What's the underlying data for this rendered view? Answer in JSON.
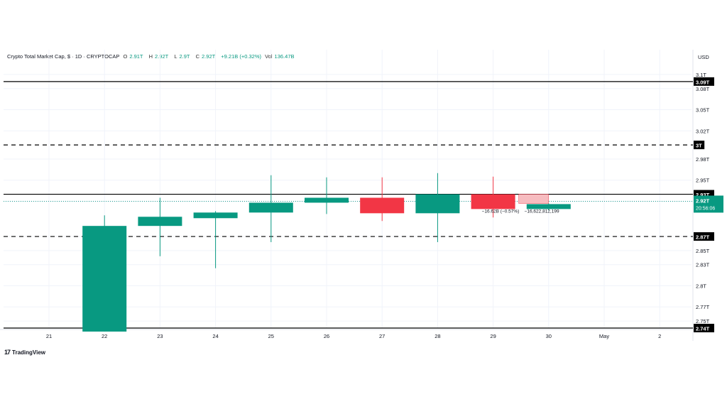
{
  "header": {
    "symbol": "Crypto Total Market Cap, $ · 1D · CRYPTOCAP",
    "open_label": "O",
    "open_value": "2.91T",
    "high_label": "H",
    "high_value": "2.92T",
    "low_label": "L",
    "low_value": "2.9T",
    "close_label": "C",
    "close_value": "2.92T",
    "change": "+9.21B (+0.32%)",
    "vol_label": "Vol",
    "vol_value": "136.47B"
  },
  "currency": "USD",
  "brand": {
    "logo": "17",
    "name": "TradingView"
  },
  "chart_data": {
    "type": "candlestick",
    "x_ticks": [
      "21",
      "22",
      "23",
      "24",
      "25",
      "26",
      "27",
      "28",
      "29",
      "30",
      "May",
      "2"
    ],
    "y_ticks": [
      3.1,
      3.08,
      3.05,
      3.02,
      2.98,
      2.95,
      2.92,
      2.87,
      2.85,
      2.83,
      2.8,
      2.77,
      2.75
    ],
    "y_tick_labels": [
      "3.1T",
      "3.08T",
      "3.05T",
      "3.02T",
      "2.98T",
      "2.95T",
      "2.92T",
      "2.87T",
      "2.85T",
      "2.83T",
      "2.8T",
      "2.77T",
      "2.75T"
    ],
    "ylim": [
      2.74,
      3.11
    ],
    "candles": [
      {
        "x": "22",
        "open": 2.735,
        "high": 2.9,
        "low": 2.735,
        "close": 2.885,
        "color": "#089981"
      },
      {
        "x": "23",
        "open": 2.885,
        "high": 2.925,
        "low": 2.842,
        "close": 2.898,
        "color": "#089981"
      },
      {
        "x": "24",
        "open": 2.896,
        "high": 2.906,
        "low": 2.825,
        "close": 2.904,
        "color": "#089981"
      },
      {
        "x": "25",
        "open": 2.904,
        "high": 2.957,
        "low": 2.862,
        "close": 2.918,
        "color": "#089981"
      },
      {
        "x": "26",
        "open": 2.918,
        "high": 2.954,
        "low": 2.902,
        "close": 2.925,
        "color": "#089981"
      },
      {
        "x": "27",
        "open": 2.925,
        "high": 2.954,
        "low": 2.892,
        "close": 2.903,
        "color": "#f23645"
      },
      {
        "x": "28",
        "open": 2.903,
        "high": 2.96,
        "low": 2.862,
        "close": 2.93,
        "color": "#089981"
      },
      {
        "x": "29",
        "open": 2.93,
        "high": 2.955,
        "low": 2.897,
        "close": 2.909,
        "color": "#f23645"
      },
      {
        "x": "30",
        "open": 2.909,
        "high": 2.917,
        "low": 2.907,
        "close": 2.916,
        "color": "#089981"
      }
    ],
    "projection": {
      "after": "29",
      "open": 2.93,
      "close": 2.917,
      "color": "#f7bcc0"
    },
    "levels": [
      {
        "value": 3.09,
        "label": "3.09T",
        "style": "solid"
      },
      {
        "value": 3.0,
        "label": "3T",
        "style": "dashed"
      },
      {
        "value": 2.93,
        "label": "2.93T",
        "style": "solid"
      },
      {
        "value": 2.87,
        "label": "2.87T",
        "style": "dashed"
      },
      {
        "value": 2.74,
        "label": "2.74T",
        "style": "solid"
      }
    ],
    "current_price": {
      "value": 2.92,
      "label": "2.92T",
      "countdown": "20:56:06"
    },
    "annotation": {
      "text1": "−16.62B (−0.57%)",
      "text2": "−16,622,812,199"
    },
    "grid": true
  }
}
